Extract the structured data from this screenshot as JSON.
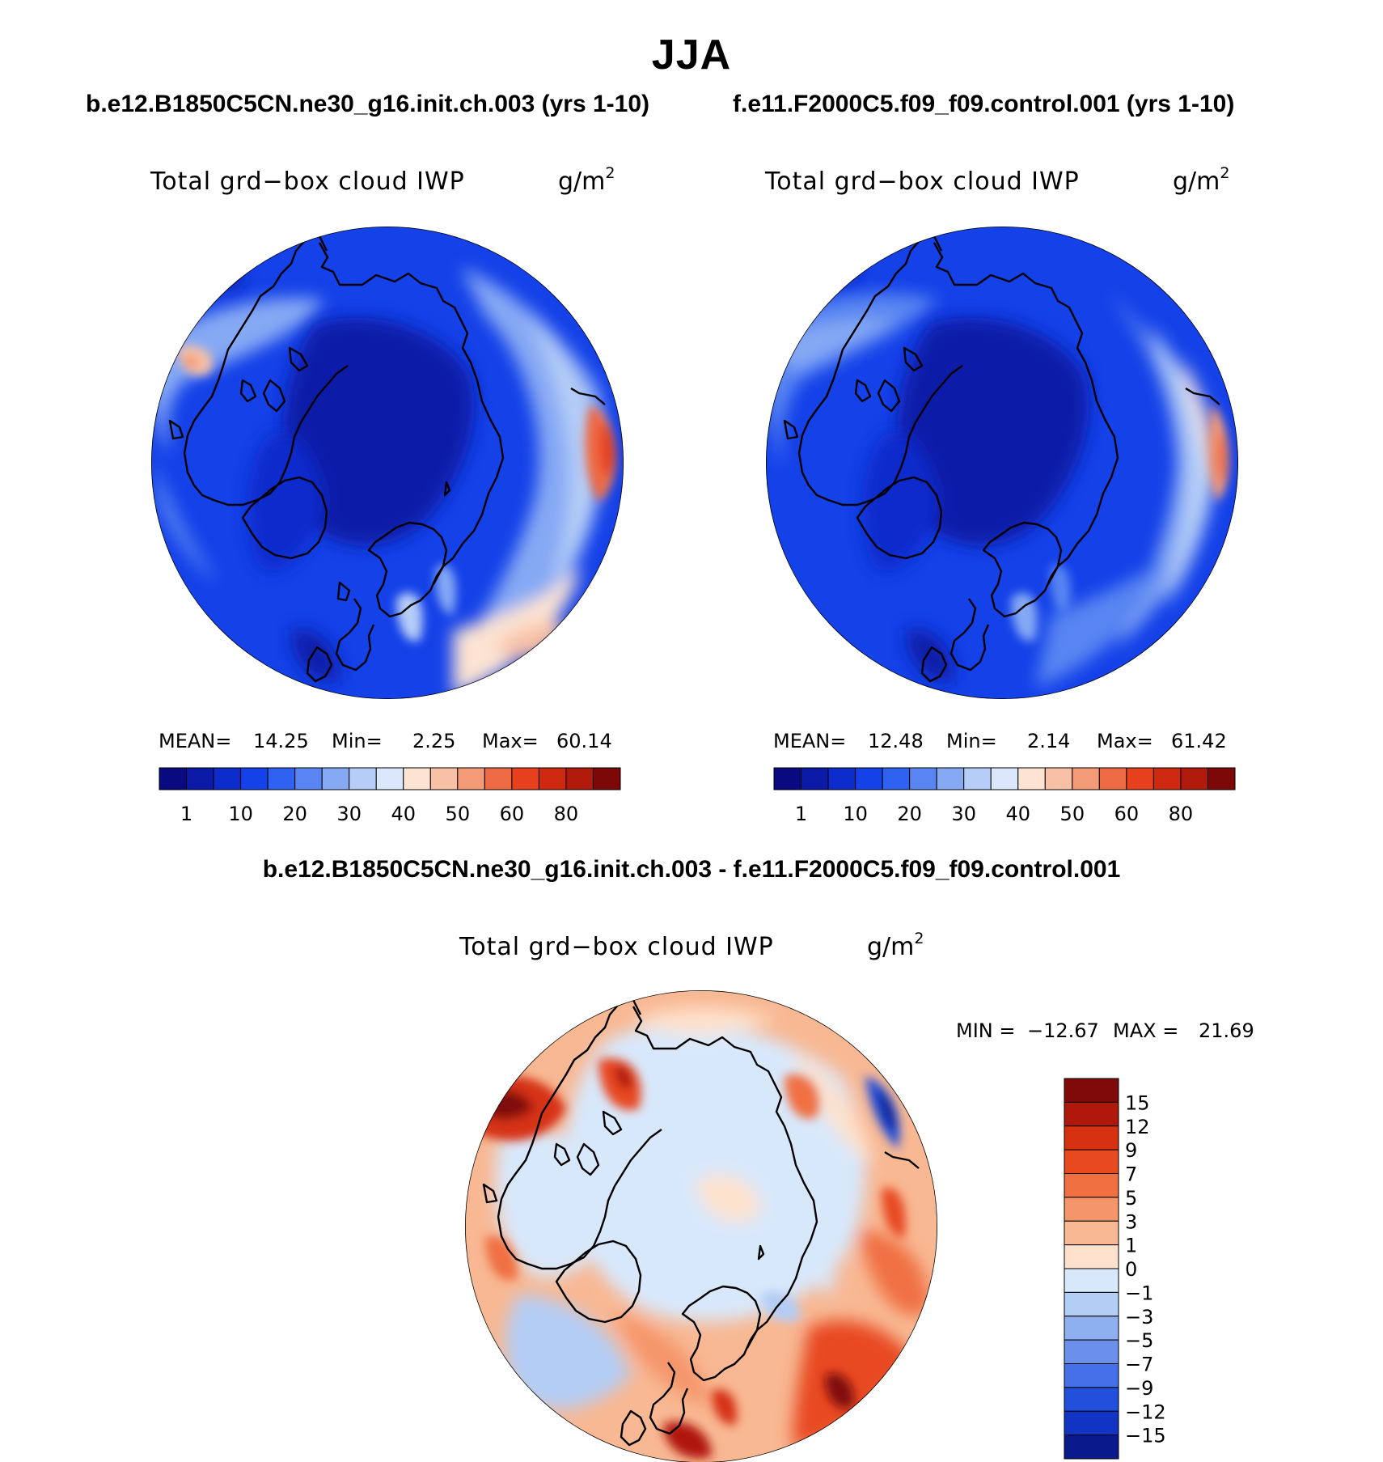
{
  "page": {
    "title": "JJA"
  },
  "panels": [
    {
      "id": "case1",
      "case_title": "b.e12.B1850C5CN.ne30_g16.init.ch.003 (yrs 1-10)",
      "variable": "Total grd−box cloud IWP",
      "units": "g/m",
      "units_sup": "2",
      "stats": {
        "mean_label": "MEAN=",
        "mean": "14.25",
        "min_label": "Min=",
        "min": "2.25",
        "max_label": "Max=",
        "max": "60.14"
      }
    },
    {
      "id": "case2",
      "case_title": "f.e11.F2000C5.f09_f09.control.001 (yrs 1-10)",
      "variable": "Total grd−box cloud IWP",
      "units": "g/m",
      "units_sup": "2",
      "stats": {
        "mean_label": "MEAN=",
        "mean": "12.48",
        "min_label": "Min=",
        "min": "2.14",
        "max_label": "Max=",
        "max": "61.42"
      }
    }
  ],
  "difference": {
    "title": "b.e12.B1850C5CN.ne30_g16.init.ch.003 - f.e11.F2000C5.f09_f09.control.001",
    "variable": "Total grd−box cloud IWP",
    "units": "g/m",
    "units_sup": "2",
    "min_label": "MIN =",
    "min": "−12.67",
    "max_label": "MAX =",
    "max": "21.69"
  },
  "chart_data": [
    {
      "type": "heatmap",
      "projection": "north-polar-stereographic",
      "title": "Total grd−box cloud IWP",
      "units": "g/m2",
      "case": "b.e12.B1850C5CN.ne30_g16.init.ch.003 (yrs 1-10)",
      "mean": 14.25,
      "min": 2.25,
      "max": 60.14,
      "colorbar": {
        "orientation": "horizontal",
        "labels": [
          "1",
          "10",
          "20",
          "30",
          "40",
          "50",
          "60",
          "80"
        ],
        "colors": [
          "#0a0a80",
          "#0c1aa8",
          "#0d2ccc",
          "#1441e8",
          "#2f62f0",
          "#5885f2",
          "#86a9f4",
          "#b5cdf7",
          "#dbe8fb",
          "#fce3d2",
          "#f8c1a6",
          "#f39a76",
          "#ee6a45",
          "#e6401f",
          "#cf2810",
          "#b01a0a",
          "#7d0808"
        ]
      }
    },
    {
      "type": "heatmap",
      "projection": "north-polar-stereographic",
      "title": "Total grd−box cloud IWP",
      "units": "g/m2",
      "case": "f.e11.F2000C5.f09_f09.control.001 (yrs 1-10)",
      "mean": 12.48,
      "min": 2.14,
      "max": 61.42,
      "colorbar": {
        "orientation": "horizontal",
        "labels": [
          "1",
          "10",
          "20",
          "30",
          "40",
          "50",
          "60",
          "80"
        ],
        "colors": [
          "#0a0a80",
          "#0c1aa8",
          "#0d2ccc",
          "#1441e8",
          "#2f62f0",
          "#5885f2",
          "#86a9f4",
          "#b5cdf7",
          "#dbe8fb",
          "#fce3d2",
          "#f8c1a6",
          "#f39a76",
          "#ee6a45",
          "#e6401f",
          "#cf2810",
          "#b01a0a",
          "#7d0808"
        ]
      }
    },
    {
      "type": "heatmap",
      "projection": "north-polar-stereographic",
      "title": "Total grd−box cloud IWP",
      "units": "g/m2",
      "case": "b.e12.B1850C5CN.ne30_g16.init.ch.003 - f.e11.F2000C5.f09_f09.control.001",
      "min": -12.67,
      "max": 21.69,
      "colorbar": {
        "orientation": "vertical",
        "labels": [
          "15",
          "12",
          "9",
          "7",
          "5",
          "3",
          "1",
          "0",
          "−1",
          "−3",
          "−5",
          "−7",
          "−9",
          "−12",
          "−15"
        ],
        "colors": [
          "#800a0a",
          "#b0180c",
          "#d63212",
          "#e84a20",
          "#f07042",
          "#f5956a",
          "#f8b893",
          "#fde1cc",
          "#d8e8fb",
          "#b4cdf5",
          "#8fb0f0",
          "#6a90ec",
          "#4670e8",
          "#2250dc",
          "#1234c4",
          "#0a1a8c"
        ]
      }
    }
  ]
}
